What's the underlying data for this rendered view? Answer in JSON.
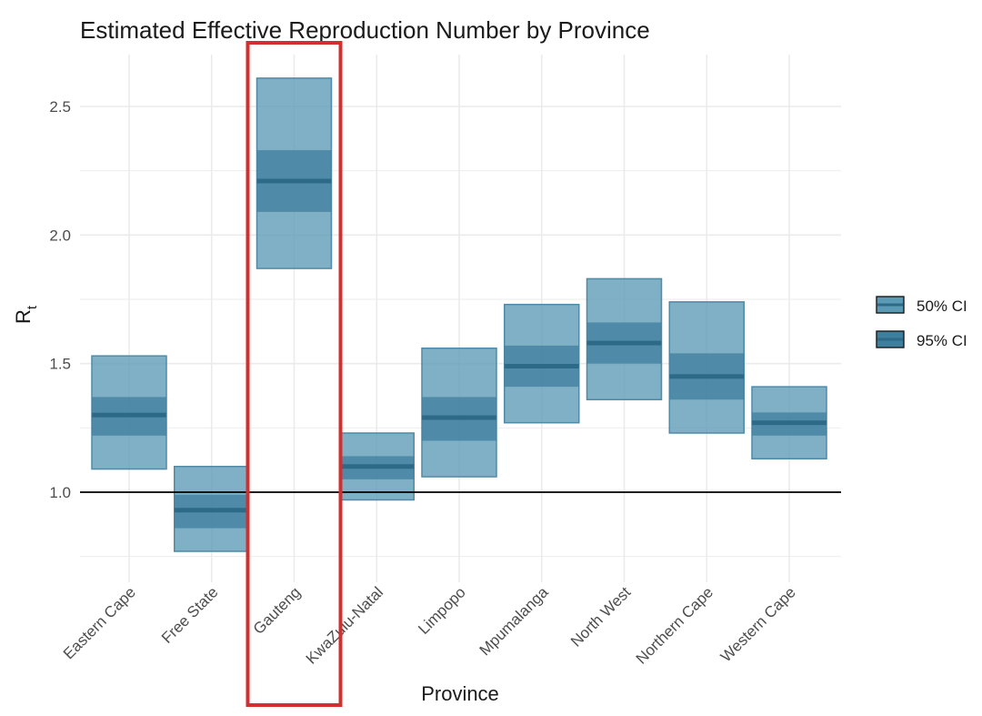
{
  "chart_data": {
    "type": "interval",
    "title": "Estimated Effective Reproduction Number by Province",
    "xlabel": "Province",
    "ylabel": "R",
    "ylabel_sub": "t",
    "categories": [
      "Eastern Cape",
      "Free State",
      "Gauteng",
      "KwaZulu-Natal",
      "Limpopo",
      "Mpumalanga",
      "North West",
      "Northern Cape",
      "Western Cape"
    ],
    "median": [
      1.3,
      0.93,
      2.21,
      1.1,
      1.29,
      1.49,
      1.58,
      1.45,
      1.27
    ],
    "ci50_low": [
      1.22,
      0.86,
      2.09,
      1.05,
      1.2,
      1.41,
      1.5,
      1.36,
      1.22
    ],
    "ci50_high": [
      1.37,
      0.99,
      2.33,
      1.14,
      1.37,
      1.57,
      1.66,
      1.54,
      1.31
    ],
    "ci95_low": [
      1.09,
      0.77,
      1.87,
      0.97,
      1.06,
      1.27,
      1.36,
      1.23,
      1.13
    ],
    "ci95_high": [
      1.53,
      1.1,
      2.61,
      1.23,
      1.56,
      1.73,
      1.83,
      1.74,
      1.41
    ],
    "yticks": [
      "1.0",
      "1.5",
      "2.0",
      "2.5"
    ],
    "ylim": [
      0.7,
      2.68
    ],
    "reference_line": 1.0,
    "legend": [
      "50% CI",
      "95% CI"
    ],
    "legend_position": "right",
    "highlighted_category": "Gauteng",
    "colors": {
      "ci95_fill": "#5b9ab5",
      "ci50_fill": "#3f7f9e",
      "median_line": "#2c6a88",
      "outline": "#4f8ba6",
      "highlight": "#d32f2f",
      "grid": "#ebebeb"
    },
    "grid": true
  }
}
